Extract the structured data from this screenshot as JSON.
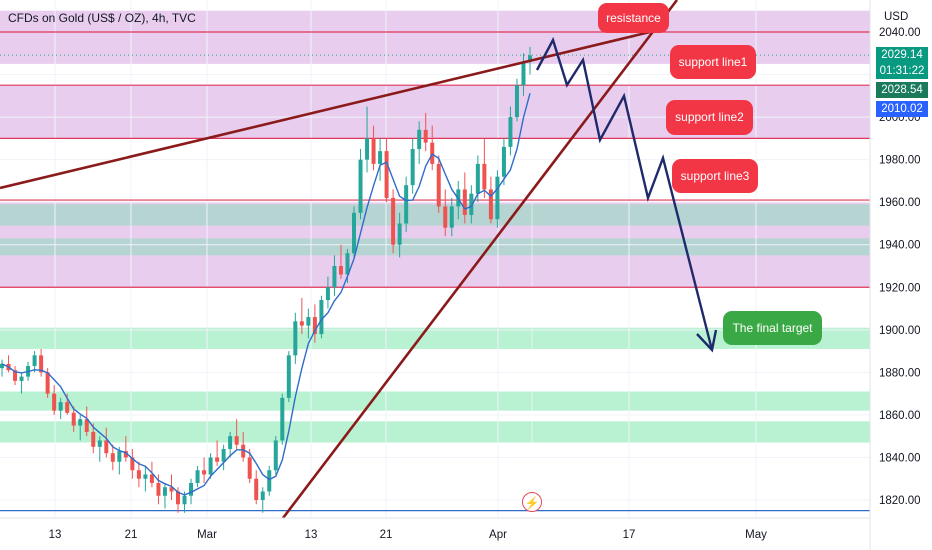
{
  "title": "CFDs on Gold (US$ / OZ), 4h, TVC",
  "colors": {
    "pink_zone": "#e8cdee",
    "teal_zone": "#b6d5d2",
    "green_zone": "#b9f2d2",
    "level_line": "#e0365a",
    "trend_line": "#8b1a1a",
    "arrow_path": "#1f2a6b",
    "ma_line": "#2f6cc9",
    "candle_up": "#26a69a",
    "candle_down": "#ef5350",
    "label_red": "#f23645",
    "label_green": "#3aa845"
  },
  "price_tags": [
    {
      "text": "2029.14",
      "color": "#089981"
    },
    {
      "text": "01:31:22",
      "color": "#089981"
    },
    {
      "text": "2028.54",
      "color": "#1b7a5c"
    },
    {
      "text": "2010.02",
      "color": "#2962ff"
    }
  ],
  "annotations": {
    "resistance": "resistance",
    "support1": "support line1",
    "support2": "support line2",
    "support3": "support line3",
    "target": "The final target"
  },
  "bolt_icon": "⚡",
  "chart_data": {
    "type": "candlestick",
    "title": "CFDs on Gold (US$ / OZ), 4h, TVC",
    "y_unit": "USD",
    "ylim": [
      1812,
      2050
    ],
    "y_ticks": [
      1820,
      1840,
      1860,
      1880,
      1900,
      1920,
      1940,
      1960,
      1980,
      2000,
      2020,
      2040
    ],
    "x_ticks": [
      "13",
      "21",
      "Mar",
      "13",
      "21",
      "Apr",
      "17",
      "May"
    ],
    "zones": [
      {
        "low": 2025,
        "high": 2050,
        "kind": "pink"
      },
      {
        "low": 1990,
        "high": 2015,
        "kind": "pink"
      },
      {
        "low": 1920,
        "high": 1960,
        "kind": "pink"
      },
      {
        "low": 1949,
        "high": 1959,
        "kind": "teal"
      },
      {
        "low": 1935,
        "high": 1943,
        "kind": "teal"
      },
      {
        "low": 1891,
        "high": 1901,
        "kind": "green"
      },
      {
        "low": 1862,
        "high": 1871,
        "kind": "green"
      },
      {
        "low": 1847,
        "high": 1857,
        "kind": "green"
      }
    ],
    "levels": [
      2040,
      2015,
      1990,
      1961,
      1920,
      1815
    ],
    "current_price": 2029.14,
    "candles": [
      [
        1882,
        1886,
        1878,
        1884
      ],
      [
        1884,
        1888,
        1880,
        1881
      ],
      [
        1881,
        1883,
        1874,
        1876
      ],
      [
        1876,
        1880,
        1870,
        1878
      ],
      [
        1878,
        1885,
        1876,
        1883
      ],
      [
        1883,
        1890,
        1880,
        1888
      ],
      [
        1888,
        1891,
        1878,
        1880
      ],
      [
        1880,
        1882,
        1868,
        1870
      ],
      [
        1870,
        1874,
        1860,
        1862
      ],
      [
        1862,
        1868,
        1858,
        1866
      ],
      [
        1866,
        1870,
        1860,
        1861
      ],
      [
        1861,
        1864,
        1852,
        1855
      ],
      [
        1855,
        1860,
        1848,
        1858
      ],
      [
        1858,
        1864,
        1850,
        1852
      ],
      [
        1852,
        1856,
        1842,
        1845
      ],
      [
        1845,
        1850,
        1838,
        1848
      ],
      [
        1848,
        1854,
        1840,
        1842
      ],
      [
        1842,
        1846,
        1834,
        1838
      ],
      [
        1838,
        1845,
        1832,
        1843
      ],
      [
        1843,
        1850,
        1838,
        1840
      ],
      [
        1840,
        1844,
        1830,
        1834
      ],
      [
        1834,
        1838,
        1826,
        1830
      ],
      [
        1830,
        1836,
        1824,
        1832
      ],
      [
        1832,
        1838,
        1826,
        1828
      ],
      [
        1828,
        1832,
        1818,
        1822
      ],
      [
        1822,
        1828,
        1816,
        1826
      ],
      [
        1826,
        1832,
        1820,
        1824
      ],
      [
        1824,
        1826,
        1814,
        1818
      ],
      [
        1818,
        1824,
        1814,
        1822
      ],
      [
        1822,
        1830,
        1818,
        1828
      ],
      [
        1828,
        1836,
        1826,
        1834
      ],
      [
        1834,
        1840,
        1828,
        1832
      ],
      [
        1832,
        1842,
        1830,
        1840
      ],
      [
        1840,
        1848,
        1836,
        1838
      ],
      [
        1838,
        1846,
        1834,
        1844
      ],
      [
        1844,
        1852,
        1840,
        1850
      ],
      [
        1850,
        1858,
        1844,
        1846
      ],
      [
        1846,
        1852,
        1838,
        1840
      ],
      [
        1840,
        1844,
        1828,
        1830
      ],
      [
        1830,
        1834,
        1818,
        1820
      ],
      [
        1820,
        1826,
        1814,
        1824
      ],
      [
        1824,
        1836,
        1822,
        1834
      ],
      [
        1834,
        1850,
        1832,
        1848
      ],
      [
        1848,
        1870,
        1846,
        1868
      ],
      [
        1868,
        1890,
        1866,
        1888
      ],
      [
        1888,
        1908,
        1884,
        1904
      ],
      [
        1904,
        1915,
        1898,
        1902
      ],
      [
        1902,
        1910,
        1896,
        1906
      ],
      [
        1906,
        1912,
        1894,
        1898
      ],
      [
        1898,
        1916,
        1896,
        1914
      ],
      [
        1914,
        1925,
        1910,
        1920
      ],
      [
        1920,
        1935,
        1916,
        1930
      ],
      [
        1930,
        1940,
        1924,
        1926
      ],
      [
        1926,
        1938,
        1922,
        1936
      ],
      [
        1936,
        1958,
        1934,
        1955
      ],
      [
        1955,
        1985,
        1952,
        1980
      ],
      [
        1980,
        2005,
        1974,
        1990
      ],
      [
        1990,
        1996,
        1975,
        1978
      ],
      [
        1978,
        1990,
        1970,
        1984
      ],
      [
        1984,
        1990,
        1960,
        1962
      ],
      [
        1962,
        1966,
        1936,
        1940
      ],
      [
        1940,
        1955,
        1934,
        1950
      ],
      [
        1950,
        1972,
        1946,
        1968
      ],
      [
        1968,
        1990,
        1964,
        1985
      ],
      [
        1985,
        1998,
        1978,
        1994
      ],
      [
        1994,
        2002,
        1984,
        1988
      ],
      [
        1988,
        1996,
        1975,
        1978
      ],
      [
        1978,
        1982,
        1955,
        1958
      ],
      [
        1958,
        1966,
        1944,
        1948
      ],
      [
        1948,
        1962,
        1944,
        1958
      ],
      [
        1958,
        1970,
        1952,
        1966
      ],
      [
        1966,
        1974,
        1950,
        1954
      ],
      [
        1954,
        1968,
        1950,
        1964
      ],
      [
        1964,
        1982,
        1960,
        1978
      ],
      [
        1978,
        1990,
        1962,
        1966
      ],
      [
        1966,
        1972,
        1950,
        1952
      ],
      [
        1952,
        1975,
        1948,
        1972
      ],
      [
        1972,
        1990,
        1968,
        1986
      ],
      [
        1986,
        2005,
        1982,
        2000
      ],
      [
        2000,
        2018,
        1998,
        2015
      ],
      [
        2015,
        2030,
        2010,
        2026
      ],
      [
        2026,
        2033,
        2020,
        2029
      ]
    ]
  }
}
